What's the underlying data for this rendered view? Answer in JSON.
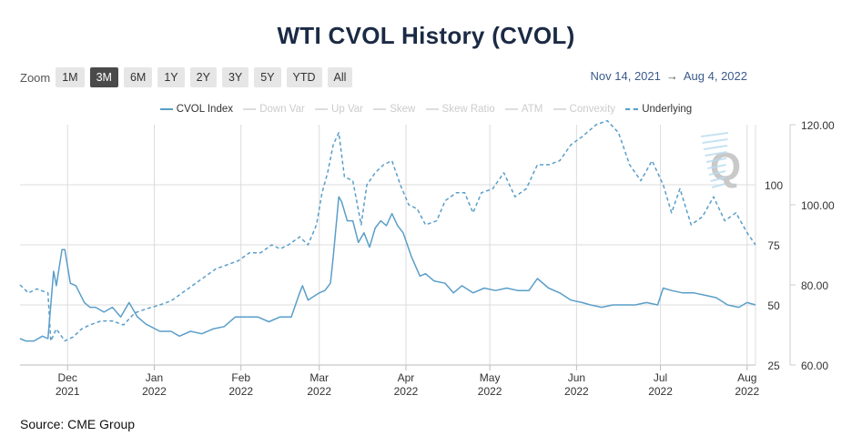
{
  "title": "WTI CVOL History (CVOL)",
  "zoom": {
    "label": "Zoom",
    "buttons": [
      "1M",
      "3M",
      "6M",
      "1Y",
      "2Y",
      "3Y",
      "5Y",
      "YTD",
      "All"
    ],
    "active": "3M"
  },
  "range": {
    "from": "Nov 14, 2021",
    "arrow": "→",
    "to": "Aug 4, 2022"
  },
  "legend": [
    {
      "label": "CVOL Index",
      "active": true,
      "style": "solid"
    },
    {
      "label": "Down Var",
      "active": false,
      "style": "solid"
    },
    {
      "label": "Up Var",
      "active": false,
      "style": "solid"
    },
    {
      "label": "Skew",
      "active": false,
      "style": "solid"
    },
    {
      "label": "Skew Ratio",
      "active": false,
      "style": "solid"
    },
    {
      "label": "ATM",
      "active": false,
      "style": "solid"
    },
    {
      "label": "Convexity",
      "active": false,
      "style": "solid"
    },
    {
      "label": "Underlying",
      "active": true,
      "style": "dashed"
    }
  ],
  "source": "Source: CME Group",
  "logo_text": "Q",
  "chart_data": {
    "type": "line",
    "x_ticks": [
      {
        "date": "2021-12-01",
        "month": "Dec",
        "year": "2021"
      },
      {
        "date": "2022-01-01",
        "month": "Jan",
        "year": "2022"
      },
      {
        "date": "2022-02-01",
        "month": "Feb",
        "year": "2022"
      },
      {
        "date": "2022-03-01",
        "month": "Mar",
        "year": "2022"
      },
      {
        "date": "2022-04-01",
        "month": "Apr",
        "year": "2022"
      },
      {
        "date": "2022-05-01",
        "month": "May",
        "year": "2022"
      },
      {
        "date": "2022-06-01",
        "month": "Jun",
        "year": "2022"
      },
      {
        "date": "2022-07-01",
        "month": "Jul",
        "year": "2022"
      },
      {
        "date": "2022-08-01",
        "month": "Aug",
        "year": "2022"
      }
    ],
    "x_range": [
      "2021-11-14",
      "2022-08-04"
    ],
    "y_left": {
      "ticks": [
        "25",
        "50",
        "75",
        "100"
      ],
      "range": [
        25,
        125
      ]
    },
    "y_right": {
      "ticks": [
        "60.00",
        "80.00",
        "100.00",
        "120.00"
      ],
      "range": [
        60,
        120
      ]
    },
    "grid": true,
    "legend_position": "top-center",
    "colors": {
      "series": "#5a9ec9",
      "grid": "#dcdcdc",
      "title": "#1b2a44"
    },
    "series": [
      {
        "name": "CVOL Index",
        "axis": "left",
        "style": "solid",
        "points": [
          [
            "2021-11-14",
            36
          ],
          [
            "2021-11-16",
            35
          ],
          [
            "2021-11-19",
            35
          ],
          [
            "2021-11-22",
            37
          ],
          [
            "2021-11-24",
            36
          ],
          [
            "2021-11-26",
            64
          ],
          [
            "2021-11-27",
            58
          ],
          [
            "2021-11-29",
            73
          ],
          [
            "2021-11-30",
            73
          ],
          [
            "2021-12-02",
            59
          ],
          [
            "2021-12-04",
            58
          ],
          [
            "2021-12-07",
            51
          ],
          [
            "2021-12-09",
            49
          ],
          [
            "2021-12-11",
            49
          ],
          [
            "2021-12-14",
            47
          ],
          [
            "2021-12-17",
            49
          ],
          [
            "2021-12-20",
            45
          ],
          [
            "2021-12-23",
            51
          ],
          [
            "2021-12-26",
            45
          ],
          [
            "2021-12-29",
            42
          ],
          [
            "2022-01-03",
            39
          ],
          [
            "2022-01-07",
            39
          ],
          [
            "2022-01-10",
            37
          ],
          [
            "2022-01-14",
            39
          ],
          [
            "2022-01-18",
            38
          ],
          [
            "2022-01-22",
            40
          ],
          [
            "2022-01-26",
            41
          ],
          [
            "2022-01-30",
            45
          ],
          [
            "2022-02-03",
            45
          ],
          [
            "2022-02-07",
            45
          ],
          [
            "2022-02-11",
            43
          ],
          [
            "2022-02-15",
            45
          ],
          [
            "2022-02-19",
            45
          ],
          [
            "2022-02-22",
            55
          ],
          [
            "2022-02-23",
            58
          ],
          [
            "2022-02-25",
            52
          ],
          [
            "2022-03-01",
            55
          ],
          [
            "2022-03-03",
            56
          ],
          [
            "2022-03-05",
            59
          ],
          [
            "2022-03-06",
            70
          ],
          [
            "2022-03-08",
            95
          ],
          [
            "2022-03-09",
            93
          ],
          [
            "2022-03-11",
            85
          ],
          [
            "2022-03-13",
            85
          ],
          [
            "2022-03-15",
            76
          ],
          [
            "2022-03-17",
            80
          ],
          [
            "2022-03-19",
            74
          ],
          [
            "2022-03-21",
            82
          ],
          [
            "2022-03-23",
            85
          ],
          [
            "2022-03-25",
            83
          ],
          [
            "2022-03-27",
            88
          ],
          [
            "2022-03-29",
            83
          ],
          [
            "2022-03-31",
            80
          ],
          [
            "2022-04-03",
            70
          ],
          [
            "2022-04-06",
            62
          ],
          [
            "2022-04-08",
            63
          ],
          [
            "2022-04-11",
            60
          ],
          [
            "2022-04-15",
            59
          ],
          [
            "2022-04-18",
            55
          ],
          [
            "2022-04-21",
            58
          ],
          [
            "2022-04-25",
            55
          ],
          [
            "2022-04-29",
            57
          ],
          [
            "2022-05-03",
            56
          ],
          [
            "2022-05-07",
            57
          ],
          [
            "2022-05-11",
            56
          ],
          [
            "2022-05-15",
            56
          ],
          [
            "2022-05-18",
            61
          ],
          [
            "2022-05-22",
            57
          ],
          [
            "2022-05-26",
            55
          ],
          [
            "2022-05-30",
            52
          ],
          [
            "2022-06-03",
            51
          ],
          [
            "2022-06-06",
            50
          ],
          [
            "2022-06-10",
            49
          ],
          [
            "2022-06-14",
            50
          ],
          [
            "2022-06-18",
            50
          ],
          [
            "2022-06-22",
            50
          ],
          [
            "2022-06-26",
            51
          ],
          [
            "2022-06-30",
            50
          ],
          [
            "2022-07-02",
            57
          ],
          [
            "2022-07-05",
            56
          ],
          [
            "2022-07-09",
            55
          ],
          [
            "2022-07-13",
            55
          ],
          [
            "2022-07-17",
            54
          ],
          [
            "2022-07-21",
            53
          ],
          [
            "2022-07-25",
            50
          ],
          [
            "2022-07-29",
            49
          ],
          [
            "2022-08-01",
            51
          ],
          [
            "2022-08-04",
            50
          ]
        ]
      },
      {
        "name": "Underlying",
        "axis": "right",
        "style": "dashed",
        "points": [
          [
            "2021-11-14",
            80
          ],
          [
            "2021-11-17",
            78
          ],
          [
            "2021-11-20",
            79
          ],
          [
            "2021-11-24",
            78
          ],
          [
            "2021-11-25",
            66
          ],
          [
            "2021-11-27",
            69
          ],
          [
            "2021-11-30",
            66
          ],
          [
            "2021-12-03",
            67
          ],
          [
            "2021-12-06",
            69
          ],
          [
            "2021-12-09",
            70
          ],
          [
            "2021-12-13",
            71
          ],
          [
            "2021-12-17",
            71
          ],
          [
            "2021-12-21",
            70
          ],
          [
            "2021-12-25",
            73
          ],
          [
            "2021-12-29",
            74
          ],
          [
            "2022-01-03",
            75
          ],
          [
            "2022-01-07",
            76
          ],
          [
            "2022-01-11",
            78
          ],
          [
            "2022-01-15",
            80
          ],
          [
            "2022-01-19",
            82
          ],
          [
            "2022-01-23",
            84
          ],
          [
            "2022-01-27",
            85
          ],
          [
            "2022-01-31",
            86
          ],
          [
            "2022-02-04",
            88
          ],
          [
            "2022-02-08",
            88
          ],
          [
            "2022-02-12",
            90
          ],
          [
            "2022-02-15",
            89
          ],
          [
            "2022-02-18",
            90
          ],
          [
            "2022-02-22",
            92
          ],
          [
            "2022-02-25",
            90
          ],
          [
            "2022-02-28",
            95
          ],
          [
            "2022-03-02",
            103
          ],
          [
            "2022-03-04",
            108
          ],
          [
            "2022-03-06",
            115
          ],
          [
            "2022-03-08",
            118
          ],
          [
            "2022-03-10",
            107
          ],
          [
            "2022-03-13",
            106
          ],
          [
            "2022-03-16",
            95
          ],
          [
            "2022-03-18",
            105
          ],
          [
            "2022-03-21",
            108
          ],
          [
            "2022-03-24",
            110
          ],
          [
            "2022-03-27",
            111
          ],
          [
            "2022-03-30",
            105
          ],
          [
            "2022-04-02",
            100
          ],
          [
            "2022-04-05",
            99
          ],
          [
            "2022-04-08",
            95
          ],
          [
            "2022-04-12",
            96
          ],
          [
            "2022-04-15",
            101
          ],
          [
            "2022-04-19",
            103
          ],
          [
            "2022-04-22",
            103
          ],
          [
            "2022-04-25",
            98
          ],
          [
            "2022-04-28",
            103
          ],
          [
            "2022-05-02",
            104
          ],
          [
            "2022-05-06",
            108
          ],
          [
            "2022-05-10",
            102
          ],
          [
            "2022-05-14",
            104
          ],
          [
            "2022-05-18",
            110
          ],
          [
            "2022-05-22",
            110
          ],
          [
            "2022-05-26",
            111
          ],
          [
            "2022-05-30",
            115
          ],
          [
            "2022-06-03",
            117
          ],
          [
            "2022-06-08",
            120
          ],
          [
            "2022-06-12",
            121
          ],
          [
            "2022-06-16",
            118
          ],
          [
            "2022-06-20",
            110
          ],
          [
            "2022-06-24",
            106
          ],
          [
            "2022-06-28",
            111
          ],
          [
            "2022-07-02",
            105
          ],
          [
            "2022-07-05",
            98
          ],
          [
            "2022-07-08",
            104
          ],
          [
            "2022-07-12",
            95
          ],
          [
            "2022-07-16",
            97
          ],
          [
            "2022-07-20",
            102
          ],
          [
            "2022-07-24",
            96
          ],
          [
            "2022-07-28",
            98
          ],
          [
            "2022-08-01",
            93
          ],
          [
            "2022-08-04",
            90
          ]
        ]
      }
    ]
  }
}
